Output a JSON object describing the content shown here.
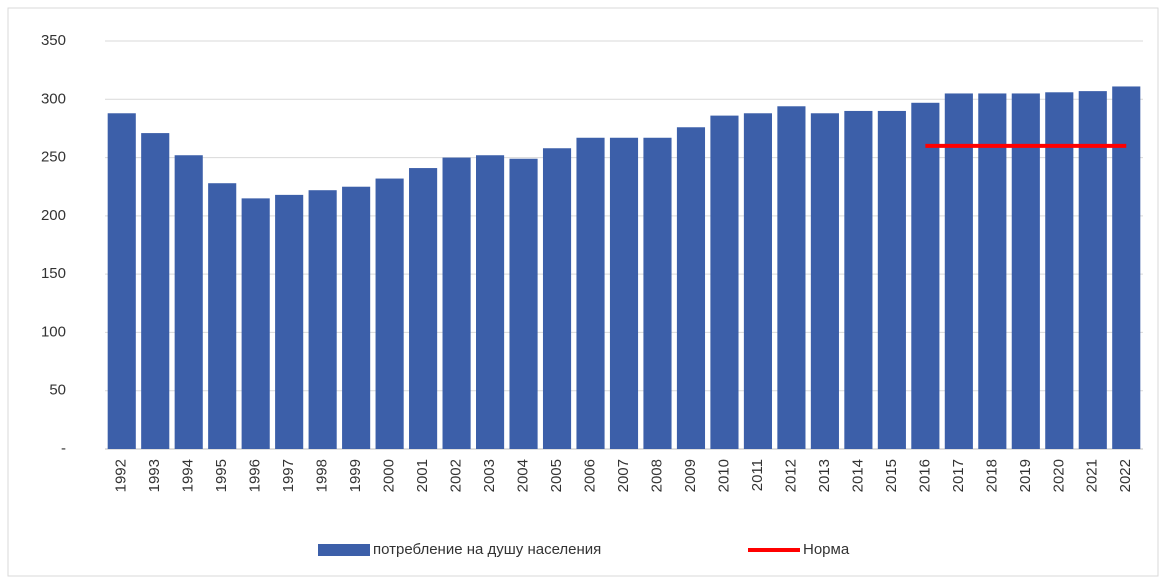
{
  "chart_data": {
    "type": "bar",
    "categories": [
      "1992",
      "1993",
      "1994",
      "1995",
      "1996",
      "1997",
      "1998",
      "1999",
      "2000",
      "2001",
      "2002",
      "2003",
      "2004",
      "2005",
      "2006",
      "2007",
      "2008",
      "2009",
      "2010",
      "2011",
      "2012",
      "2013",
      "2014",
      "2015",
      "2016",
      "2017",
      "2018",
      "2019",
      "2020",
      "2021",
      "2022"
    ],
    "series": [
      {
        "name": "потребление на душу населения",
        "color": "#3c5fa9",
        "type": "bar",
        "values": [
          288,
          271,
          252,
          228,
          215,
          218,
          222,
          225,
          232,
          241,
          250,
          252,
          249,
          258,
          267,
          267,
          267,
          276,
          286,
          288,
          294,
          288,
          290,
          290,
          297,
          305,
          305,
          305,
          306,
          307,
          311
        ]
      },
      {
        "name": "Норма",
        "color": "#ff0000",
        "type": "line",
        "values": [
          null,
          null,
          null,
          null,
          null,
          null,
          null,
          null,
          null,
          null,
          null,
          null,
          null,
          null,
          null,
          null,
          null,
          null,
          null,
          null,
          null,
          null,
          null,
          null,
          260,
          260,
          260,
          260,
          260,
          260,
          260
        ]
      }
    ],
    "ylim": [
      0,
      350
    ],
    "yticks": [
      {
        "value": 0,
        "label": "-"
      },
      50,
      100,
      150,
      200,
      250,
      300,
      350
    ],
    "grid": true,
    "legend": "bottom"
  }
}
